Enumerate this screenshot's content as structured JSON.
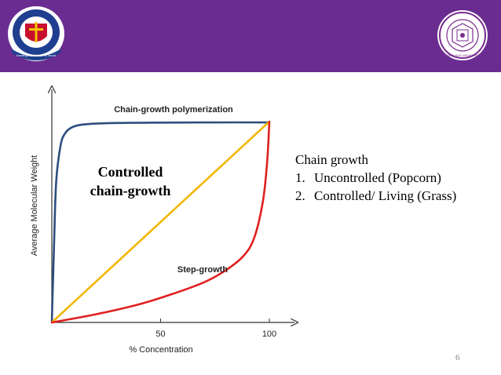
{
  "slide": {
    "page_number": "6",
    "header_color": "#6a2c91"
  },
  "logos": {
    "left": {
      "icon": "school-crest-logo",
      "motto": "Knowledge and Wisdom for Service"
    },
    "right": {
      "icon": "university-seal-logo",
      "text": "TSING HUA UNIVERSITY"
    }
  },
  "side_text": {
    "heading": "Chain growth",
    "items": [
      {
        "num": "1.",
        "text": "Uncontrolled (Popcorn)"
      },
      {
        "num": "2.",
        "text": "Controlled/ Living (Grass)"
      }
    ]
  },
  "chart_data": {
    "type": "line",
    "ylabel": "Average Molecular Weight",
    "xlabel": "% Concentration",
    "xlim": [
      0,
      100
    ],
    "ylim": [
      0,
      100
    ],
    "x_ticks": [
      "50",
      "100"
    ],
    "x_tick_values": [
      50,
      100
    ],
    "annotations": {
      "chain_growth": "Chain-growth polymerization",
      "step_growth": "Step-growth",
      "controlled": [
        "Controlled",
        "chain-growth"
      ]
    },
    "series": [
      {
        "color": "#2e4e7e",
        "x": [
          0,
          1,
          2,
          4,
          6,
          9,
          14,
          25,
          50,
          75,
          100
        ],
        "y": [
          0,
          38,
          70,
          88,
          94,
          97,
          98.5,
          99.2,
          99.5,
          99.6,
          99.6
        ]
      },
      {
        "color": "#f2b705",
        "x": [
          0,
          25,
          50,
          75,
          100
        ],
        "y": [
          0,
          25,
          50,
          75,
          100
        ]
      },
      {
        "color": "#e02020",
        "x": [
          0,
          20,
          40,
          55,
          70,
          80,
          88,
          93,
          97,
          99,
          100
        ],
        "y": [
          0,
          4,
          9,
          14,
          20,
          26,
          33,
          42,
          60,
          80,
          100
        ]
      }
    ]
  }
}
